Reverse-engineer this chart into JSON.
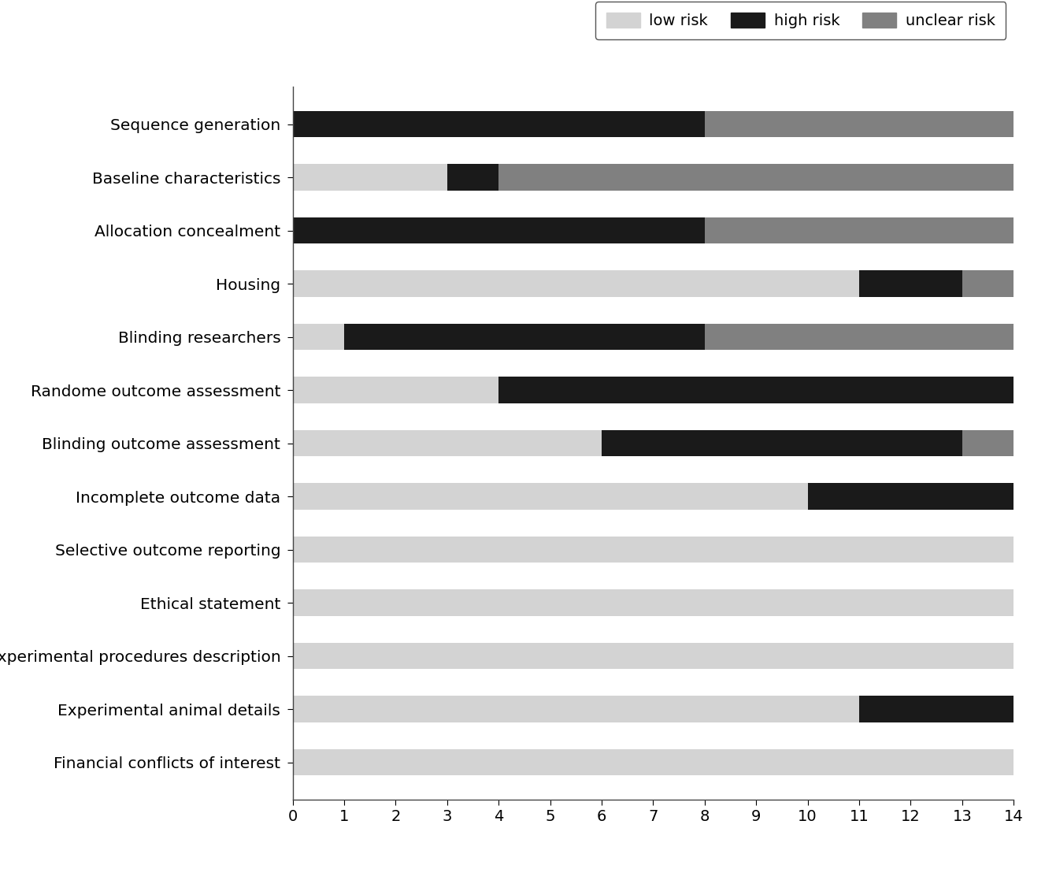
{
  "categories": [
    "Sequence generation",
    "Baseline characteristics",
    "Allocation concealment",
    "Housing",
    "Blinding researchers",
    "Randome outcome assessment",
    "Blinding outcome assessment",
    "Incomplete outcome data",
    "Selective outcome reporting",
    "Ethical statement",
    "Experimental procedures description",
    "Experimental animal details",
    "Financial conflicts of interest"
  ],
  "low_risk": [
    0,
    3,
    0,
    11,
    1,
    4,
    6,
    10,
    14,
    14,
    14,
    11,
    14
  ],
  "high_risk": [
    8,
    1,
    8,
    2,
    7,
    10,
    7,
    4,
    0,
    0,
    0,
    3,
    0
  ],
  "unclear_risk": [
    6,
    10,
    6,
    1,
    6,
    0,
    1,
    0,
    0,
    0,
    0,
    0,
    0
  ],
  "low_color": "#d3d3d3",
  "high_color": "#1a1a1a",
  "unclear_color": "#808080",
  "xlim": [
    0,
    14
  ],
  "xticks": [
    0,
    1,
    2,
    3,
    4,
    5,
    6,
    7,
    8,
    9,
    10,
    11,
    12,
    13,
    14
  ],
  "bar_height": 0.5,
  "legend_labels": [
    "low risk",
    "high risk",
    "unclear risk"
  ],
  "background_color": "#ffffff",
  "tick_fontsize": 14,
  "label_fontsize": 14.5,
  "legend_fontsize": 14
}
